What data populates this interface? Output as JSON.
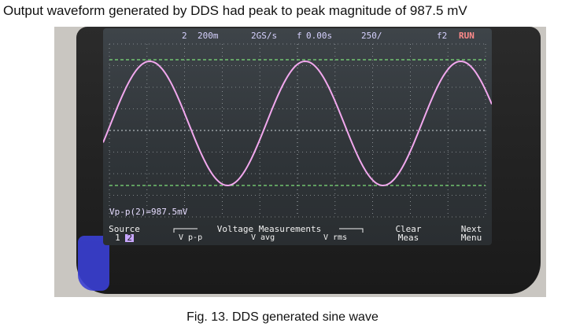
{
  "heading": "Output waveform generated by DDS had peak to peak magnitude of 987.5 mV",
  "caption": "Fig. 13. DDS generated sine wave",
  "scope": {
    "status": {
      "channel": "2",
      "volts_div": "200",
      "volts_unit": "m",
      "sample_rate": "2G",
      "sample_unit": "S/s",
      "trigger_marker": "f",
      "time_offset": "0.00s",
      "time_div": "250",
      "time_unit": "/",
      "trigger_channel": "f2",
      "run_state": "RUN"
    },
    "measurement_readout": "Vp-p(2)=987.5mV",
    "softkeys": {
      "source_label": "Source",
      "source_ch1": "1",
      "source_ch2": "2",
      "group_title": "Voltage Measurements",
      "vpp": "V p-p",
      "vavg": "V avg",
      "vrms": "V rms",
      "clear": "Clear",
      "meas": "Meas",
      "next": "Next",
      "menu": "Menu"
    },
    "trace_color": "#f2a8ee",
    "cursor_color": "#7fe07a",
    "waveform": {
      "cycles": 2.5,
      "peak_to_peak_mV": 987.5
    }
  }
}
